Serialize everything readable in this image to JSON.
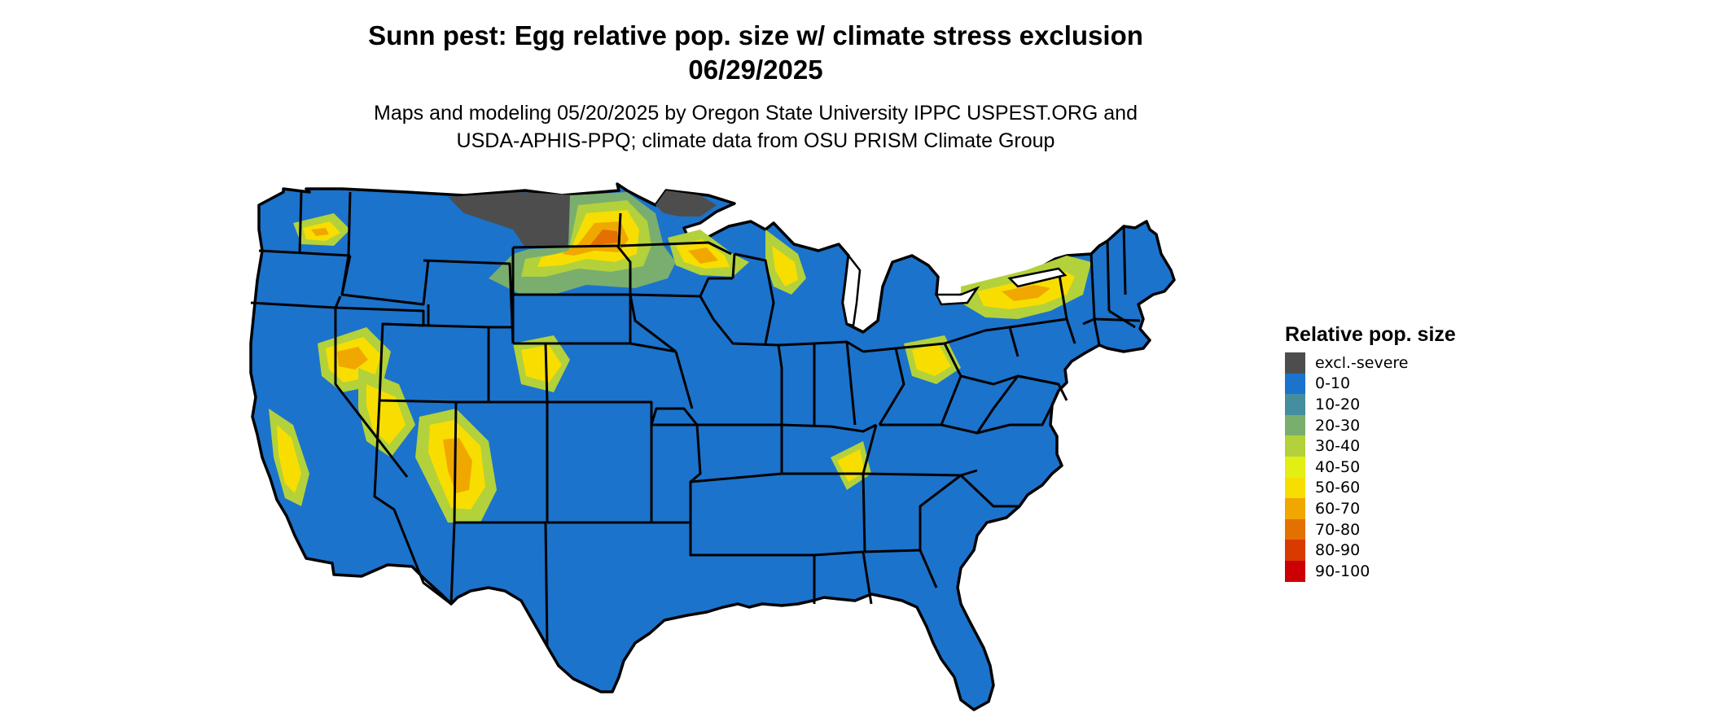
{
  "title": {
    "line1": "Sunn pest: Egg relative pop. size w/ climate stress exclusion",
    "line2": "06/29/2025"
  },
  "subtitle": {
    "line1": "Maps and modeling 05/20/2025 by Oregon State University IPPC USPEST.ORG and",
    "line2": "USDA-APHIS-PPQ; climate data from OSU PRISM Climate Group"
  },
  "legend": {
    "title": "Relative pop. size",
    "items": [
      {
        "label": "excl.-severe",
        "color": "#4d4d4d"
      },
      {
        "label": "0-10",
        "color": "#1b73cc"
      },
      {
        "label": "10-20",
        "color": "#458ea0"
      },
      {
        "label": "20-30",
        "color": "#7aae6e"
      },
      {
        "label": "30-40",
        "color": "#b3d13b"
      },
      {
        "label": "40-50",
        "color": "#e2ef14"
      },
      {
        "label": "50-60",
        "color": "#f8de00"
      },
      {
        "label": "60-70",
        "color": "#f0a800"
      },
      {
        "label": "70-80",
        "color": "#e37000"
      },
      {
        "label": "80-90",
        "color": "#d83a00"
      },
      {
        "label": "90-100",
        "color": "#cc0000"
      }
    ]
  },
  "map": {
    "base_color": "#1b73cc",
    "border_color": "#000000"
  }
}
